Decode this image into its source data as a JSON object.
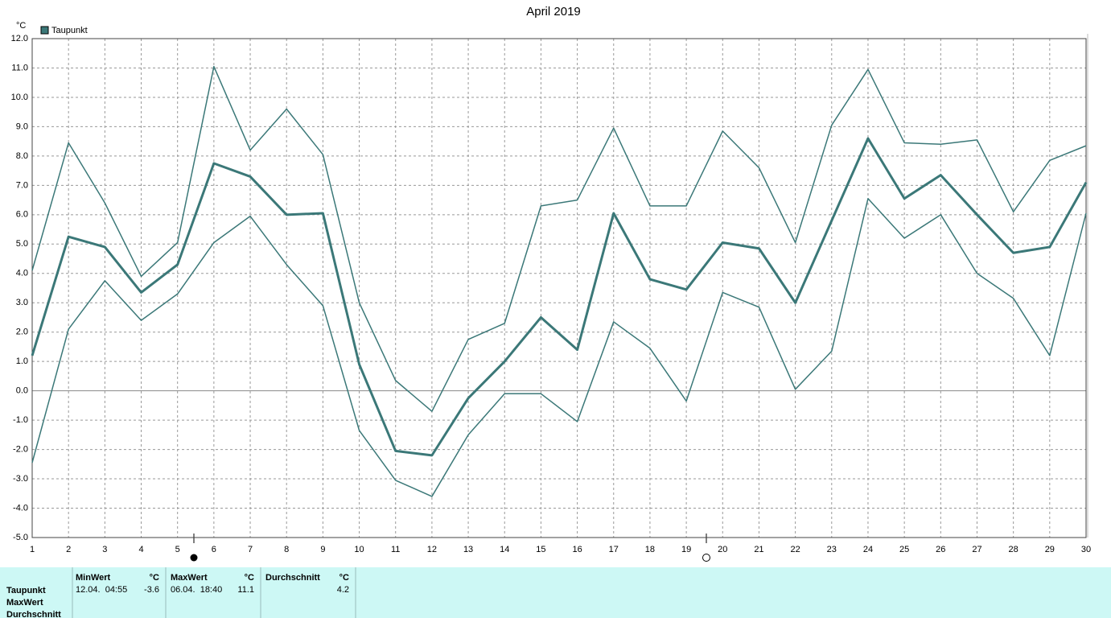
{
  "chart_data": {
    "type": "line",
    "title": "April 2019",
    "y_unit": "°C",
    "x": [
      1,
      2,
      3,
      4,
      5,
      6,
      7,
      8,
      9,
      10,
      11,
      12,
      13,
      14,
      15,
      16,
      17,
      18,
      19,
      20,
      21,
      22,
      23,
      24,
      25,
      26,
      27,
      28,
      29,
      30
    ],
    "xlim": [
      1,
      30
    ],
    "xticks": [
      1,
      2,
      3,
      4,
      5,
      6,
      7,
      8,
      9,
      10,
      11,
      12,
      13,
      14,
      15,
      16,
      17,
      18,
      19,
      20,
      21,
      22,
      23,
      24,
      25,
      26,
      27,
      28,
      29,
      30
    ],
    "ylim": [
      -5,
      12
    ],
    "yticks": [
      {
        "value": 12,
        "label": "12.0"
      },
      {
        "value": 11,
        "label": "11.0"
      },
      {
        "value": 10,
        "label": "10.0"
      },
      {
        "value": 9,
        "label": "9.0"
      },
      {
        "value": 8,
        "label": "8.0"
      },
      {
        "value": 7,
        "label": "7.0"
      },
      {
        "value": 6,
        "label": "6.0"
      },
      {
        "value": 5,
        "label": "5.0"
      },
      {
        "value": 4,
        "label": "4.0"
      },
      {
        "value": 3,
        "label": "3.0"
      },
      {
        "value": 2,
        "label": "2.0"
      },
      {
        "value": 1,
        "label": "1.0"
      },
      {
        "value": 0,
        "label": "0.0"
      },
      {
        "value": -1,
        "label": "-1.0"
      },
      {
        "value": -2,
        "label": "-2.0"
      },
      {
        "value": -3,
        "label": "-3.0"
      },
      {
        "value": -4,
        "label": "-4.0"
      },
      {
        "value": -5,
        "label": "-5.0"
      }
    ],
    "grid": true,
    "series": [
      {
        "name": "Taupunkt",
        "color": "#3b7878",
        "width": 3,
        "values": [
          1.2,
          5.25,
          4.9,
          3.35,
          4.3,
          7.75,
          7.3,
          6.0,
          6.05,
          0.9,
          -2.05,
          -2.2,
          -0.25,
          1.0,
          2.5,
          1.4,
          6.05,
          3.8,
          3.45,
          5.05,
          4.85,
          3.0,
          5.8,
          8.6,
          6.55,
          7.35,
          6.0,
          4.7,
          4.9,
          7.1
        ]
      },
      {
        "color": "#3b7878",
        "width": 1.5,
        "values": [
          4.1,
          8.45,
          6.4,
          3.9,
          5.05,
          11.05,
          8.2,
          9.6,
          8.05,
          3.0,
          0.35,
          -0.7,
          1.75,
          2.3,
          6.3,
          6.5,
          8.95,
          6.3,
          6.3,
          8.85,
          7.6,
          5.05,
          9.05,
          10.95,
          8.45,
          8.4,
          8.55,
          6.1,
          7.85,
          8.35
        ]
      },
      {
        "color": "#3b7878",
        "width": 1.5,
        "values": [
          -2.45,
          2.1,
          3.75,
          2.4,
          3.3,
          5.05,
          5.95,
          4.3,
          2.9,
          -1.35,
          -3.05,
          -3.6,
          -1.5,
          -0.1,
          -0.1,
          -1.05,
          2.35,
          1.45,
          -0.35,
          3.35,
          2.85,
          0.05,
          1.35,
          6.55,
          5.2,
          6.0,
          4.0,
          3.15,
          1.2,
          6.05
        ]
      }
    ]
  },
  "table": {
    "columns": [
      "MinWert",
      "°C",
      "MaxWert",
      "°C",
      "Durchschnitt",
      "°C"
    ],
    "row_labels": [
      "Taupunkt",
      "MaxWert",
      "Durchschnitt"
    ],
    "rows": [
      [
        "12.04.  04:55",
        -3.6,
        "06.04.  18:40",
        11.1,
        4.2
      ]
    ]
  }
}
